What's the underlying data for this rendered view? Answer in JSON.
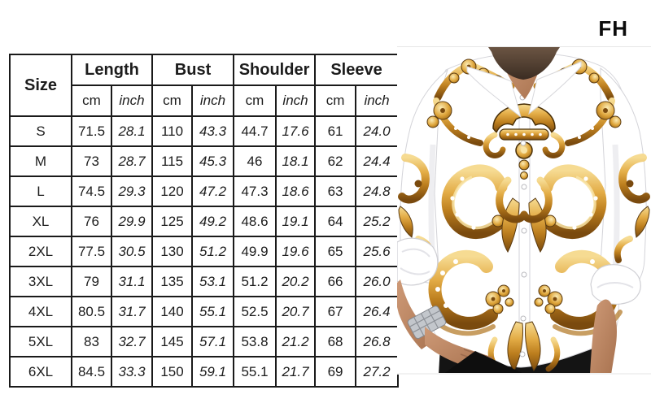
{
  "brand": {
    "logo": "FH"
  },
  "size_chart": {
    "groups": [
      {
        "label": "Size",
        "units": []
      },
      {
        "label": "Length",
        "units": [
          "cm",
          "inch"
        ]
      },
      {
        "label": "Bust",
        "units": [
          "cm",
          "inch"
        ]
      },
      {
        "label": "Shoulder",
        "units": [
          "cm",
          "inch"
        ]
      },
      {
        "label": "Sleeve",
        "units": [
          "cm",
          "inch"
        ]
      }
    ],
    "rows": [
      [
        "S",
        "71.5",
        "28.1",
        "110",
        "43.3",
        "44.7",
        "17.6",
        "61",
        "24.0"
      ],
      [
        "M",
        "73",
        "28.7",
        "115",
        "45.3",
        "46",
        "18.1",
        "62",
        "24.4"
      ],
      [
        "L",
        "74.5",
        "29.3",
        "120",
        "47.2",
        "47.3",
        "18.6",
        "63",
        "24.8"
      ],
      [
        "XL",
        "76",
        "29.9",
        "125",
        "49.2",
        "48.6",
        "19.1",
        "64",
        "25.2"
      ],
      [
        "2XL",
        "77.5",
        "30.5",
        "130",
        "51.2",
        "49.9",
        "19.6",
        "65",
        "25.6"
      ],
      [
        "3XL",
        "79",
        "31.1",
        "135",
        "53.1",
        "51.2",
        "20.2",
        "66",
        "26.0"
      ],
      [
        "4XL",
        "80.5",
        "31.7",
        "140",
        "55.1",
        "52.5",
        "20.7",
        "67",
        "26.4"
      ],
      [
        "5XL",
        "83",
        "32.7",
        "145",
        "57.1",
        "53.8",
        "21.2",
        "68",
        "26.8"
      ],
      [
        "6XL",
        "84.5",
        "33.3",
        "150",
        "59.1",
        "55.1",
        "21.7",
        "69",
        "27.2"
      ]
    ]
  },
  "colors": {
    "table_border": "#1a1a1a",
    "gold": "#C8892A",
    "gold_light": "#F6DB92",
    "gold_dark": "#7A4A0E",
    "skin": "#C4906E",
    "pants": "#141414"
  }
}
